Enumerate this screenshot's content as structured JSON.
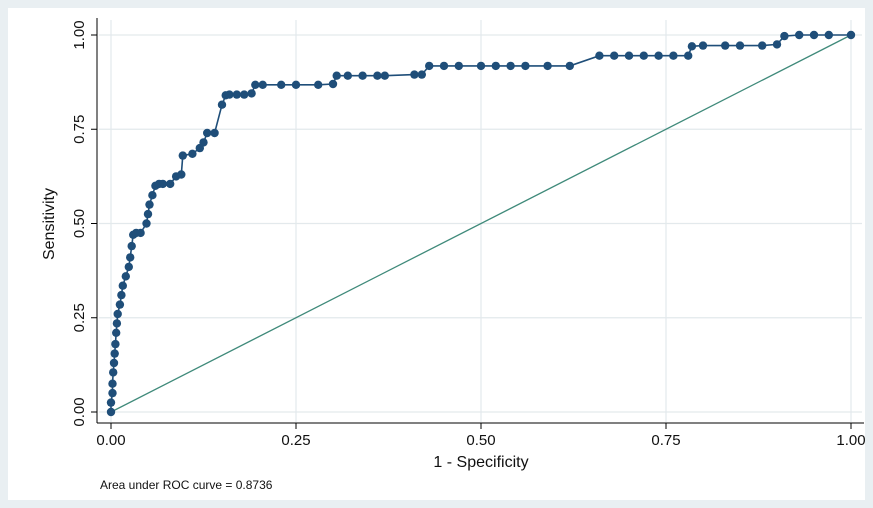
{
  "chart_data": {
    "type": "line",
    "xlabel": "1 - Specificity",
    "ylabel": "Sensitivity",
    "xlim": [
      0,
      1
    ],
    "ylim": [
      0,
      1
    ],
    "x_ticks": [
      "0.00",
      "0.25",
      "0.50",
      "0.75",
      "1.00"
    ],
    "y_ticks": [
      "0.00",
      "0.25",
      "0.50",
      "0.75",
      "1.00"
    ],
    "grid": true,
    "note": "Area under ROC curve = 0.8736",
    "colors": {
      "curve": "#1f4e79",
      "reference": "#3f8a7a",
      "grid": "#e3e9ec",
      "plot_bg": "#ffffff",
      "page_bg": "#e9eff2"
    },
    "series": [
      {
        "points": [
          [
            0.0,
            0.0
          ],
          [
            0.0,
            0.025
          ],
          [
            0.002,
            0.05
          ],
          [
            0.002,
            0.075
          ],
          [
            0.003,
            0.105
          ],
          [
            0.004,
            0.13
          ],
          [
            0.005,
            0.155
          ],
          [
            0.006,
            0.18
          ],
          [
            0.007,
            0.21
          ],
          [
            0.008,
            0.235
          ],
          [
            0.009,
            0.26
          ],
          [
            0.012,
            0.285
          ],
          [
            0.014,
            0.31
          ],
          [
            0.016,
            0.335
          ],
          [
            0.02,
            0.36
          ],
          [
            0.024,
            0.385
          ],
          [
            0.026,
            0.41
          ],
          [
            0.028,
            0.44
          ],
          [
            0.03,
            0.47
          ],
          [
            0.034,
            0.475
          ],
          [
            0.04,
            0.475
          ],
          [
            0.048,
            0.5
          ],
          [
            0.05,
            0.525
          ],
          [
            0.052,
            0.55
          ],
          [
            0.056,
            0.575
          ],
          [
            0.06,
            0.6
          ],
          [
            0.065,
            0.605
          ],
          [
            0.07,
            0.605
          ],
          [
            0.08,
            0.605
          ],
          [
            0.088,
            0.625
          ],
          [
            0.095,
            0.63
          ],
          [
            0.097,
            0.68
          ],
          [
            0.11,
            0.685
          ],
          [
            0.12,
            0.7
          ],
          [
            0.125,
            0.715
          ],
          [
            0.13,
            0.74
          ],
          [
            0.14,
            0.74
          ],
          [
            0.15,
            0.815
          ],
          [
            0.155,
            0.84
          ],
          [
            0.16,
            0.842
          ],
          [
            0.17,
            0.842
          ],
          [
            0.18,
            0.842
          ],
          [
            0.19,
            0.845
          ],
          [
            0.195,
            0.868
          ],
          [
            0.205,
            0.868
          ],
          [
            0.23,
            0.868
          ],
          [
            0.25,
            0.868
          ],
          [
            0.28,
            0.868
          ],
          [
            0.3,
            0.87
          ],
          [
            0.305,
            0.892
          ],
          [
            0.32,
            0.892
          ],
          [
            0.34,
            0.892
          ],
          [
            0.36,
            0.892
          ],
          [
            0.37,
            0.892
          ],
          [
            0.41,
            0.895
          ],
          [
            0.42,
            0.895
          ],
          [
            0.43,
            0.918
          ],
          [
            0.45,
            0.918
          ],
          [
            0.47,
            0.918
          ],
          [
            0.5,
            0.918
          ],
          [
            0.52,
            0.918
          ],
          [
            0.54,
            0.918
          ],
          [
            0.56,
            0.918
          ],
          [
            0.59,
            0.918
          ],
          [
            0.62,
            0.918
          ],
          [
            0.66,
            0.945
          ],
          [
            0.68,
            0.945
          ],
          [
            0.7,
            0.945
          ],
          [
            0.72,
            0.945
          ],
          [
            0.74,
            0.945
          ],
          [
            0.76,
            0.945
          ],
          [
            0.78,
            0.945
          ],
          [
            0.785,
            0.97
          ],
          [
            0.8,
            0.972
          ],
          [
            0.83,
            0.972
          ],
          [
            0.85,
            0.972
          ],
          [
            0.88,
            0.972
          ],
          [
            0.9,
            0.975
          ],
          [
            0.91,
            0.997
          ],
          [
            0.93,
            1.0
          ],
          [
            0.95,
            1.0
          ],
          [
            0.97,
            1.0
          ],
          [
            1.0,
            1.0
          ]
        ]
      },
      {
        "points": [
          [
            0,
            0
          ],
          [
            1,
            1
          ]
        ]
      }
    ]
  }
}
